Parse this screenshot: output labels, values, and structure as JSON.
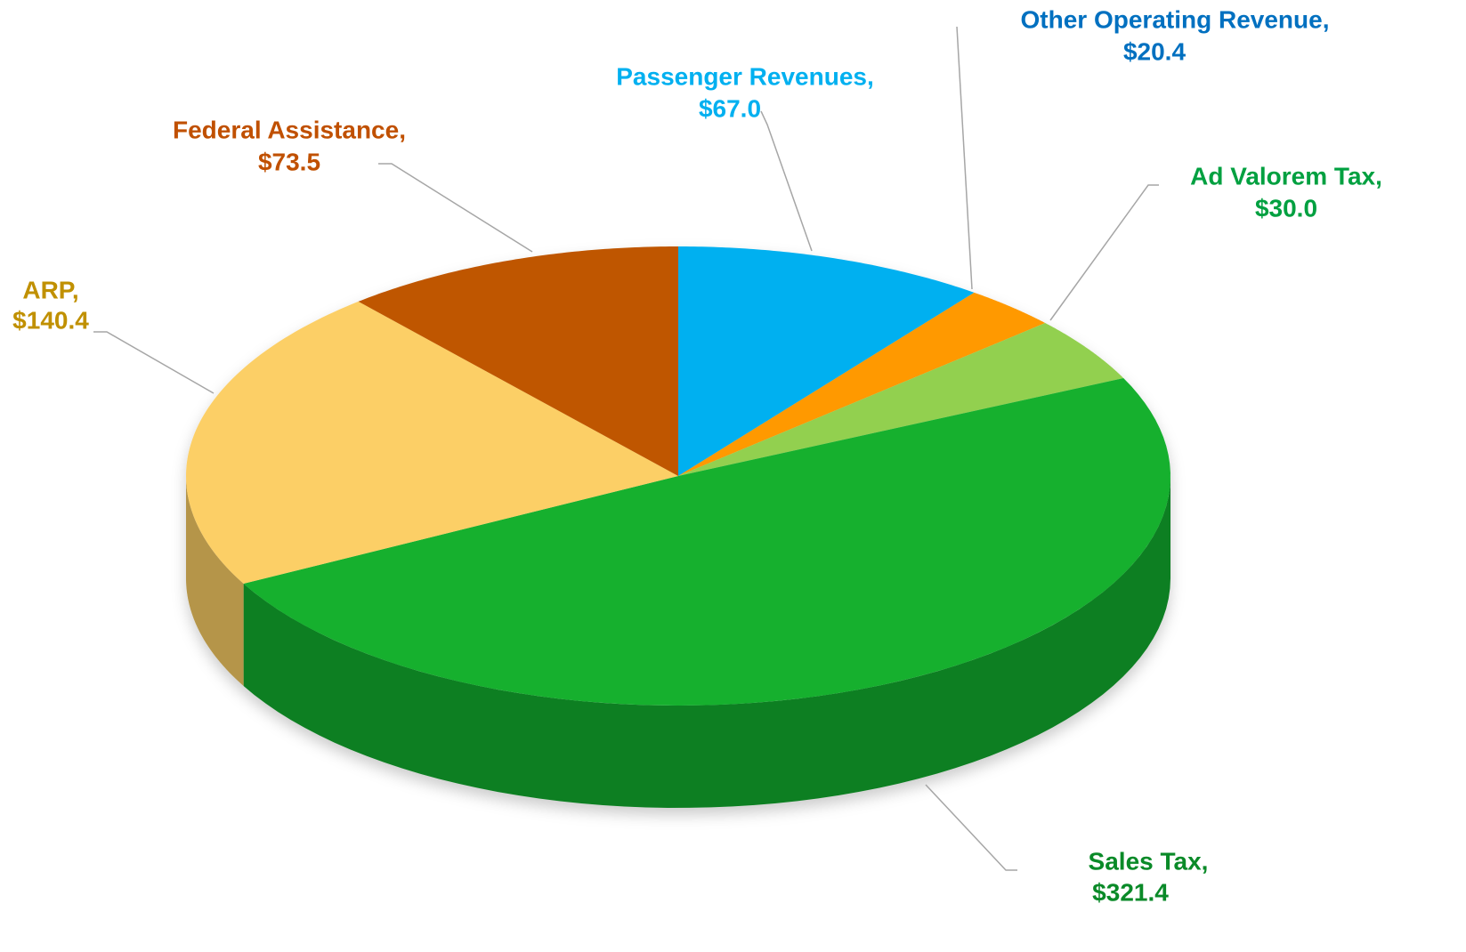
{
  "chart_data": {
    "type": "pie",
    "categories": [
      "Passenger Revenues,",
      "Other Operating Revenue,",
      "Ad Valorem Tax,",
      "Sales Tax,",
      "ARP,",
      "Federal Assistance,"
    ],
    "values": [
      67.0,
      20.4,
      30.0,
      321.4,
      140.4,
      73.5
    ],
    "value_labels": [
      "$67.0",
      "$20.4",
      "$30.0",
      "$321.4",
      "$140.4",
      "$73.5"
    ],
    "colors": [
      "#00b0f0",
      "#ff9900",
      "#92d050",
      "#13b02e",
      "#fccf66",
      "#bf5700"
    ],
    "label_colors": [
      "#00b0f0",
      "#0070c0",
      "#00a040",
      "#0a8a28",
      "#c09000",
      "#c05000"
    ]
  }
}
